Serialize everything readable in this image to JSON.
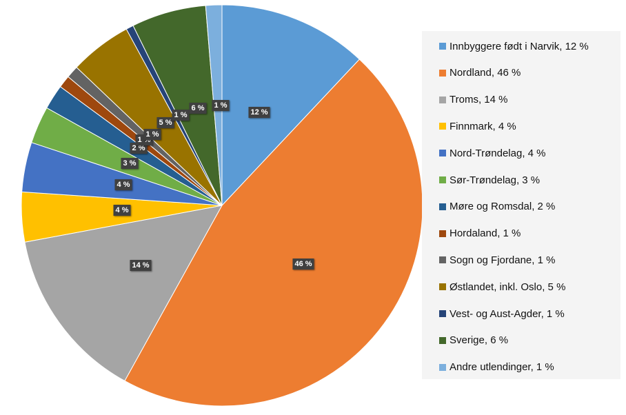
{
  "chart_data": {
    "type": "pie",
    "title": "",
    "start_angle_deg": 0,
    "direction": "clockwise",
    "legend_position": "right",
    "slices": [
      {
        "name": "Innbyggere født i Narvik",
        "value": 12,
        "label": "12 %",
        "legend": "Innbyggere født i Narvik, 12 %",
        "color": "#5B9BD5"
      },
      {
        "name": "Nordland",
        "value": 46,
        "label": "46 %",
        "legend": "Nordland, 46 %",
        "color": "#ED7D31"
      },
      {
        "name": "Troms",
        "value": 14,
        "label": "14 %",
        "legend": "Troms, 14 %",
        "color": "#A5A5A5"
      },
      {
        "name": "Finnmark",
        "value": 4,
        "label": "4 %",
        "legend": "Finnmark, 4 %",
        "color": "#FFC000"
      },
      {
        "name": "Nord-Trøndelag",
        "value": 4,
        "label": "4 %",
        "legend": "Nord-Trøndelag, 4 %",
        "color": "#4472C4"
      },
      {
        "name": "Sør-Trøndelag",
        "value": 3,
        "label": "3 %",
        "legend": "Sør-Trøndelag, 3 %",
        "color": "#70AD47"
      },
      {
        "name": "Møre og Romsdal",
        "value": 2,
        "label": "2 %",
        "legend": "Møre og Romsdal, 2 %",
        "color": "#255E91"
      },
      {
        "name": "Hordaland",
        "value": 1,
        "label": "1 %",
        "legend": "Hordaland, 1 %",
        "color": "#9E480E"
      },
      {
        "name": "Sogn og Fjordane",
        "value": 1,
        "label": "1 %",
        "legend": "Sogn og Fjordane, 1 %",
        "color": "#636363"
      },
      {
        "name": "Østlandet, inkl. Oslo",
        "value": 5,
        "label": "5 %",
        "legend": "Østlandet, inkl. Oslo, 5 %",
        "color": "#997300"
      },
      {
        "name": "Vest- og Aust-Agder",
        "value": 0.6,
        "label": "1 %",
        "legend": "Vest- og Aust-Agder, 1 %",
        "color": "#264478"
      },
      {
        "name": "Sverige",
        "value": 6,
        "label": "6 %",
        "legend": "Sverige, 6 %",
        "color": "#43682B"
      },
      {
        "name": "Andre utlendinger",
        "value": 1.3,
        "label": "1 %",
        "legend": "Andre utlendinger, 1 %",
        "color": "#7CAFDD"
      }
    ]
  }
}
